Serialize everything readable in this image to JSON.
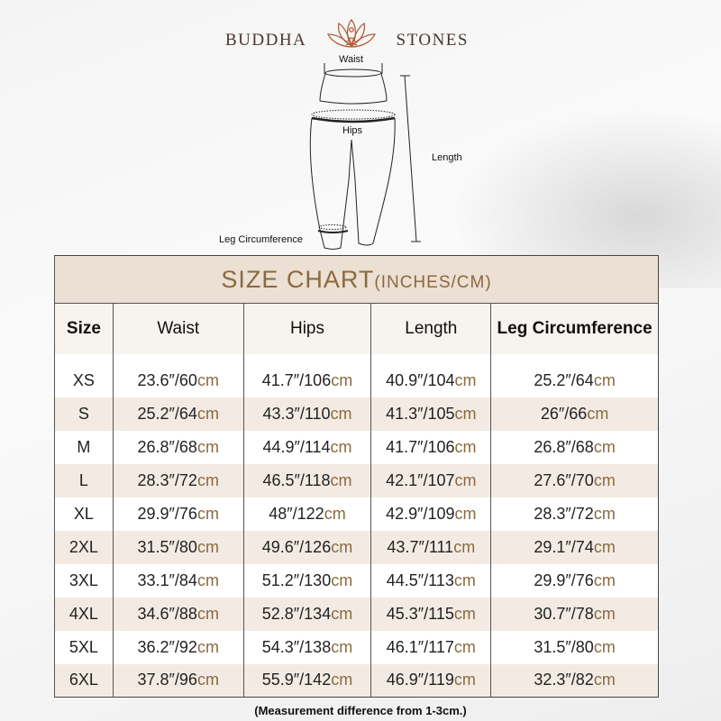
{
  "brand": {
    "left": "BUDDHA",
    "right": "STONES"
  },
  "diagram": {
    "waist": "Waist",
    "hips": "Hips",
    "length": "Length",
    "leg": "Leg Circumference"
  },
  "table": {
    "title": "SIZE CHART",
    "title_units": "(INCHES/CM)",
    "headers": [
      "Size",
      "Waist",
      "Hips",
      "Length",
      "Leg Circumference"
    ],
    "rows": [
      {
        "size": "XS",
        "waist": [
          "23.6″/60",
          "cm"
        ],
        "hips": [
          "41.7″/106",
          "cm"
        ],
        "length": [
          "40.9″/104",
          "cm"
        ],
        "leg": [
          "25.2″/64",
          "cm"
        ]
      },
      {
        "size": "S",
        "waist": [
          "25.2″/64",
          "cm"
        ],
        "hips": [
          "43.3″/110",
          "cm"
        ],
        "length": [
          "41.3″/105",
          "cm"
        ],
        "leg": [
          "26″/66",
          "cm"
        ]
      },
      {
        "size": "M",
        "waist": [
          "26.8″/68",
          "cm"
        ],
        "hips": [
          "44.9″/114",
          "cm"
        ],
        "length": [
          "41.7″/106",
          "cm"
        ],
        "leg": [
          "26.8″/68",
          "cm"
        ]
      },
      {
        "size": "L",
        "waist": [
          "28.3″/72",
          "cm"
        ],
        "hips": [
          "46.5″/118",
          "cm"
        ],
        "length": [
          "42.1″/107",
          "cm"
        ],
        "leg": [
          "27.6″/70",
          "cm"
        ]
      },
      {
        "size": "XL",
        "waist": [
          "29.9″/76",
          "cm"
        ],
        "hips": [
          "48″/122",
          "cm"
        ],
        "length": [
          "42.9″/109",
          "cm"
        ],
        "leg": [
          "28.3″/72",
          "cm"
        ]
      },
      {
        "size": "2XL",
        "waist": [
          "31.5″/80",
          "cm"
        ],
        "hips": [
          "49.6″/126",
          "cm"
        ],
        "length": [
          "43.7″/111",
          "cm"
        ],
        "leg": [
          "29.1″/74",
          "cm"
        ]
      },
      {
        "size": "3XL",
        "waist": [
          "33.1″/84",
          "cm"
        ],
        "hips": [
          "51.2″/130",
          "cm"
        ],
        "length": [
          "44.5″/113",
          "cm"
        ],
        "leg": [
          "29.9″/76",
          "cm"
        ]
      },
      {
        "size": "4XL",
        "waist": [
          "34.6″/88",
          "cm"
        ],
        "hips": [
          "52.8″/134",
          "cm"
        ],
        "length": [
          "45.3″/115",
          "cm"
        ],
        "leg": [
          "30.7″/78",
          "cm"
        ]
      },
      {
        "size": "5XL",
        "waist": [
          "36.2″/92",
          "cm"
        ],
        "hips": [
          "54.3″/138",
          "cm"
        ],
        "length": [
          "46.1″/117",
          "cm"
        ],
        "leg": [
          "31.5″/80",
          "cm"
        ]
      },
      {
        "size": "6XL",
        "waist": [
          "37.8″/96",
          "cm"
        ],
        "hips": [
          "55.9″/142",
          "cm"
        ],
        "length": [
          "46.9″/119",
          "cm"
        ],
        "leg": [
          "32.3″/82",
          "cm"
        ]
      }
    ]
  },
  "note": "(Measurement difference from 1-3cm.)",
  "colors": {
    "accent": "#8a6a3f",
    "title_bg": "#ecdfd3",
    "stripe": "#f3ebe3",
    "logo_text": "#4a3630",
    "lotus": "#b0603a"
  }
}
